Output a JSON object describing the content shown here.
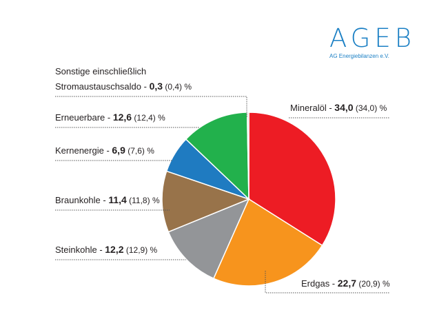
{
  "logo": {
    "title": "AGEB",
    "subtitle": "AG Energiebilanzen e.V."
  },
  "chart_data": {
    "type": "pie",
    "slices": [
      {
        "label": "Mineralöl",
        "value": 34.0,
        "value_text": "34,0",
        "prev_text": "(34,0)",
        "unit": "%",
        "color": "#ed1c24"
      },
      {
        "label": "Erdgas",
        "value": 22.7,
        "value_text": "22,7",
        "prev_text": "(20,9)",
        "unit": "%",
        "color": "#f7941d"
      },
      {
        "label": "Steinkohle",
        "value": 12.2,
        "value_text": "12,2",
        "prev_text": "(12,9)",
        "unit": "%",
        "color": "#939598"
      },
      {
        "label": "Braunkohle",
        "value": 11.4,
        "value_text": "11,4",
        "prev_text": "(11,8)",
        "unit": "%",
        "color": "#98734a"
      },
      {
        "label": "Kernenergie",
        "value": 6.9,
        "value_text": "6,9",
        "prev_text": "(7,6)",
        "unit": "%",
        "color": "#1f7bc1"
      },
      {
        "label": "Erneuerbare",
        "value": 12.6,
        "value_text": "12,6",
        "prev_text": "(12,4)",
        "unit": "%",
        "color": "#22b14c"
      },
      {
        "label": "Sonstige einschließlich",
        "label2": "Stromaustauschsaldo",
        "value": 0.3,
        "value_text": "0,3",
        "prev_text": "(0,4)",
        "unit": "%",
        "color": "#c9ccbb"
      }
    ]
  }
}
